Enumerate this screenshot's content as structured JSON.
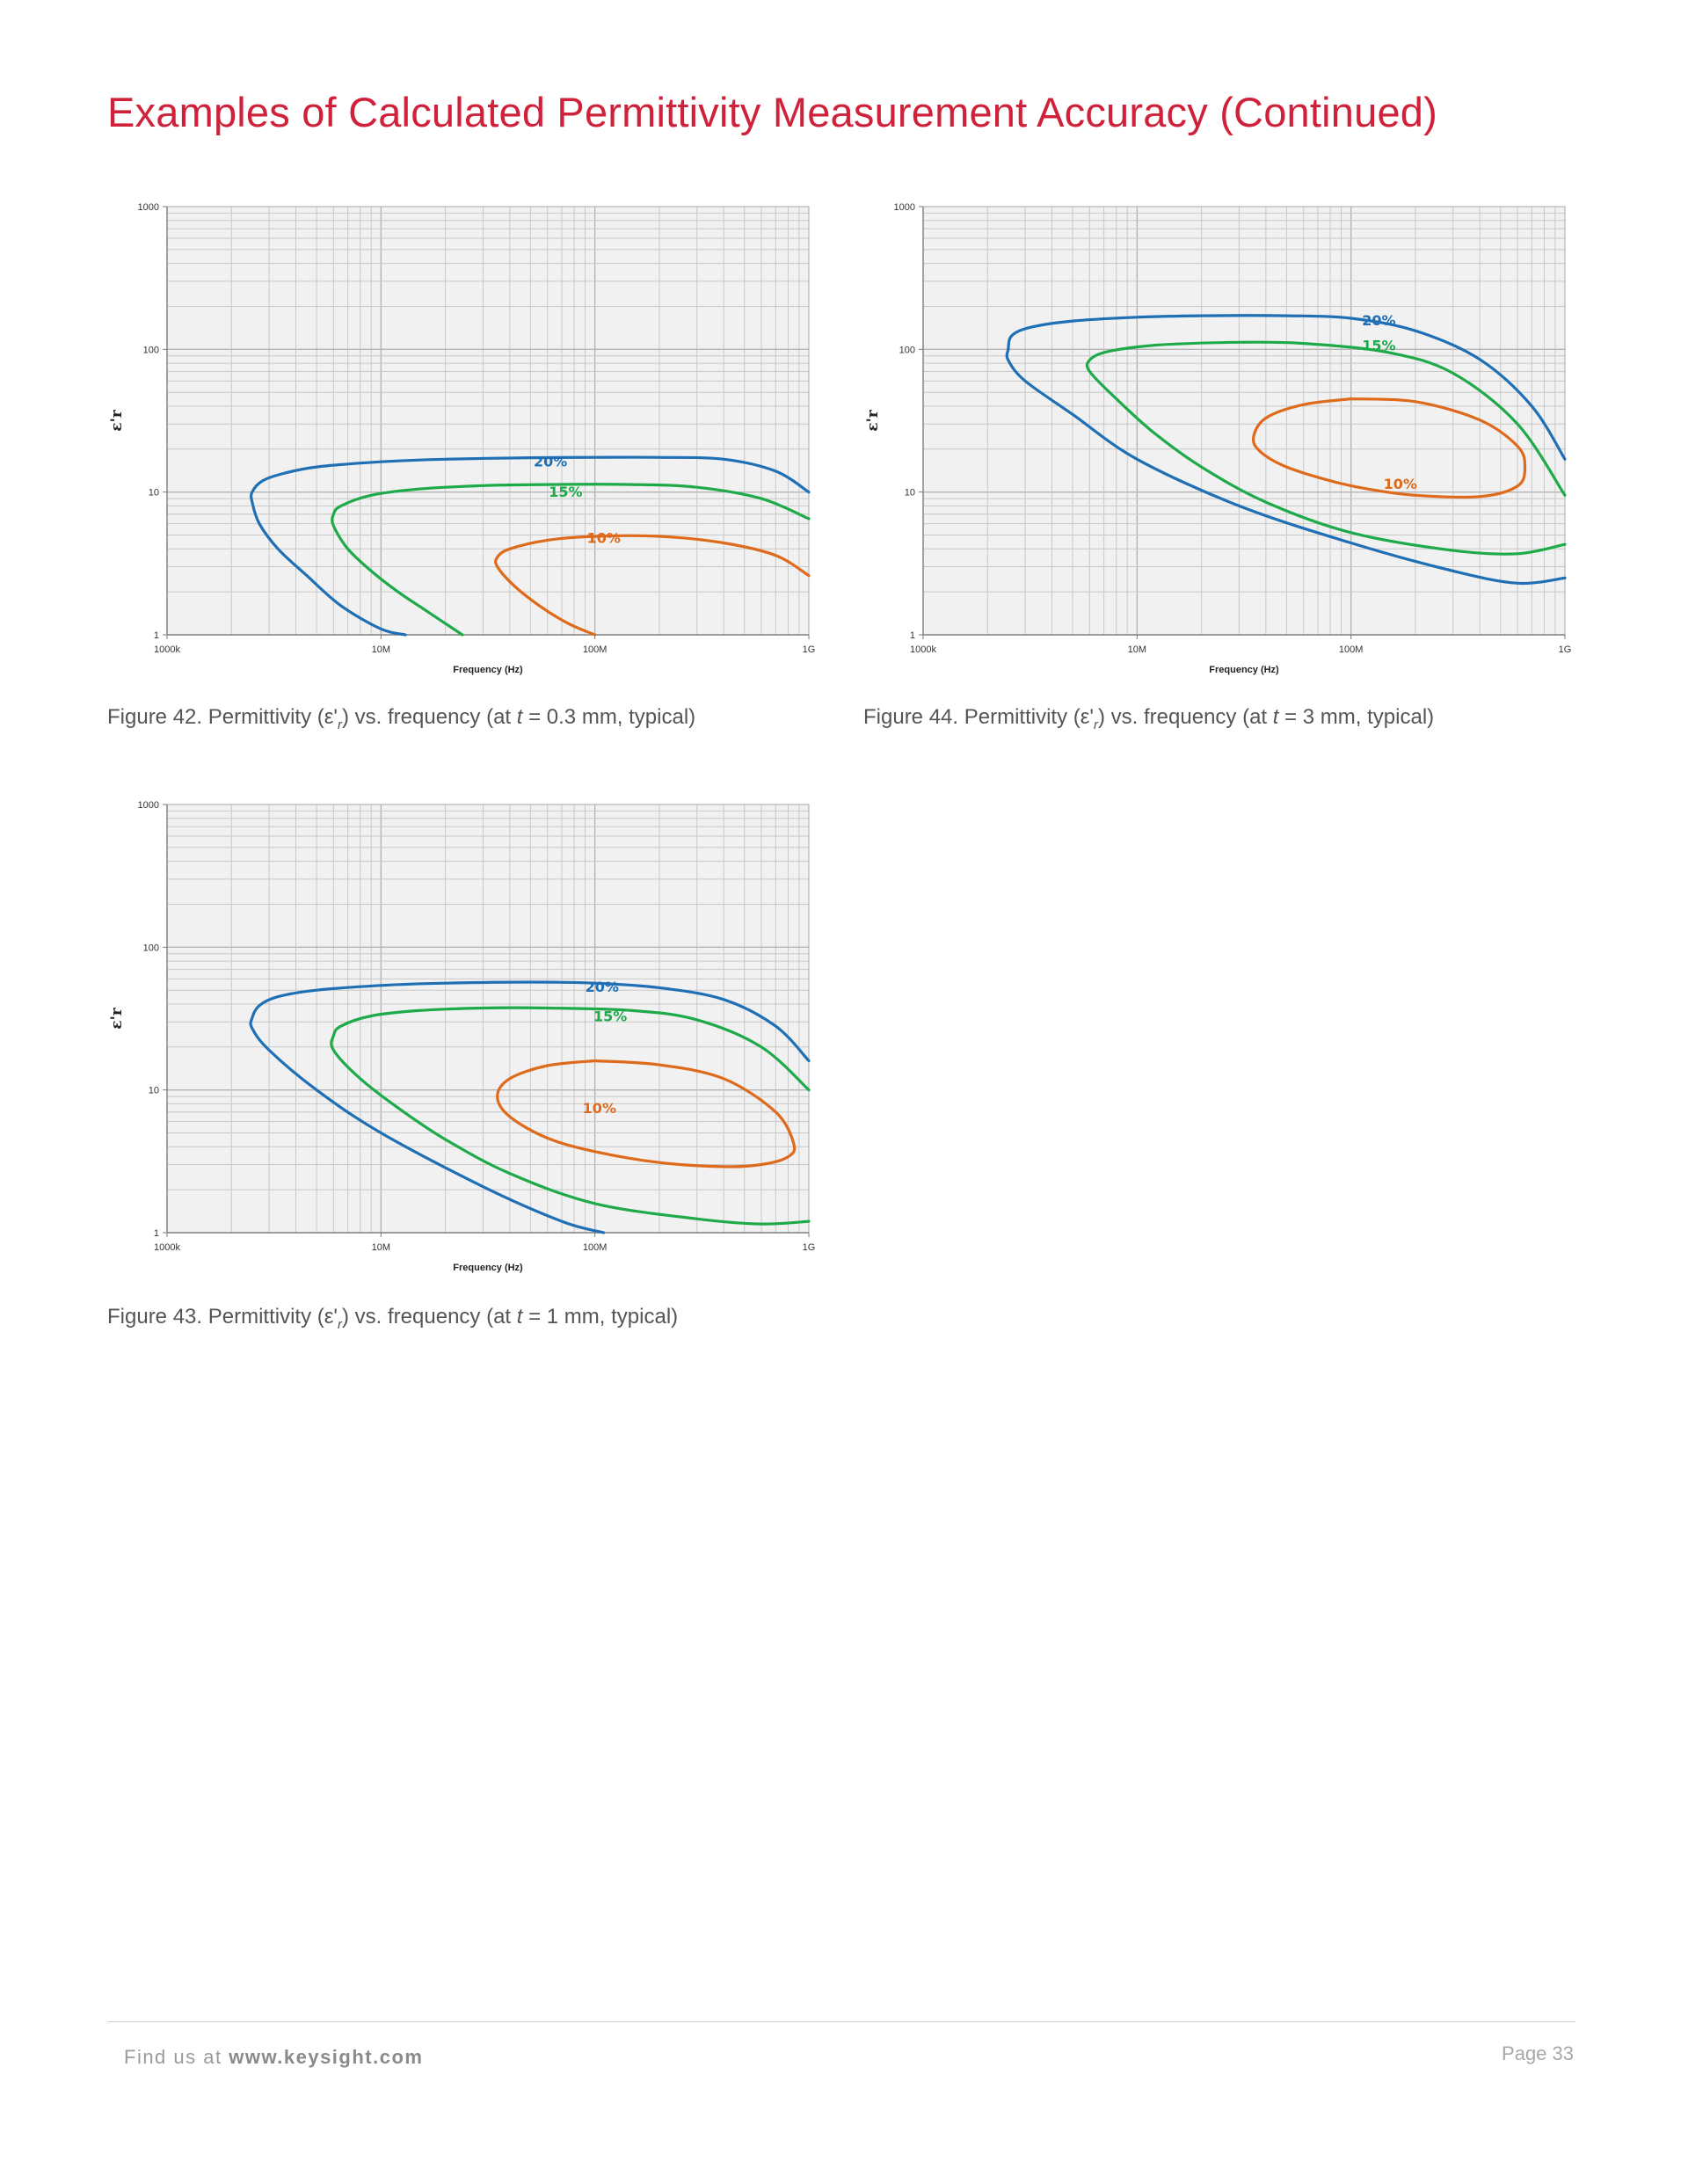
{
  "page": {
    "title": "Examples of Calculated Permittivity Measurement Accuracy (Continued)",
    "footer": {
      "find_prefix": "Find us at",
      "website": "www.keysight.com",
      "page_label": "Page 33"
    }
  },
  "captions": {
    "fig42": {
      "pre": "Figure 42. Permittivity (ε'",
      "sub": "r",
      "mid": ") vs. frequency (at ",
      "var": "t",
      "post": " = 0.3 mm, typical)"
    },
    "fig44": {
      "pre": "Figure 44. Permittivity (ε'",
      "sub": "r",
      "mid": ") vs. frequency (at ",
      "var": "t",
      "post": " = 3 mm, typical)"
    },
    "fig43": {
      "pre": "Figure 43. Permittivity (ε'",
      "sub": "r",
      "mid": ") vs. frequency (at ",
      "var": "t",
      "post": " = 1 mm, typical)"
    }
  },
  "colors": {
    "s20": "#1f6fb5",
    "s15": "#1faa4a",
    "s10": "#de6a1c",
    "grid": "#c8c8c8",
    "plot_bg": "#f1f1f1"
  },
  "chart_data": [
    {
      "id": "fig42",
      "type": "line",
      "xlabel": "Frequency (Hz)",
      "ylabel": "ε'r",
      "xscale": "log",
      "yscale": "log",
      "xlim": [
        1000000,
        1000000000
      ],
      "ylim": [
        1,
        1000
      ],
      "xticks": [
        {
          "v": 1000000,
          "label": "1000k"
        },
        {
          "v": 10000000,
          "label": "10M"
        },
        {
          "v": 100000000,
          "label": "100M"
        },
        {
          "v": 1000000000,
          "label": "1G"
        }
      ],
      "yticks": [
        {
          "v": 1,
          "label": "1"
        },
        {
          "v": 10,
          "label": "10"
        },
        {
          "v": 100,
          "label": "100"
        },
        {
          "v": 1000,
          "label": "1000"
        }
      ],
      "grid": true,
      "series": [
        {
          "name": "20%",
          "color_key": "s20",
          "label_at": [
            62000000,
            16.5
          ],
          "x": [
            1000000000,
            700000000,
            400000000,
            200000000,
            100000000,
            50000000,
            20000000,
            10000000,
            5000000,
            3500000,
            2800000,
            2500000,
            2500000,
            2700000,
            3300000,
            4500000,
            6500000,
            10000000,
            13000000
          ],
          "y": [
            10,
            14,
            17,
            17.5,
            17.5,
            17.4,
            17,
            16.3,
            15,
            13.5,
            12,
            10,
            8.5,
            6,
            4,
            2.6,
            1.6,
            1.1,
            1
          ]
        },
        {
          "name": "15%",
          "color_key": "s15",
          "label_at": [
            73000000,
            10.1
          ],
          "x": [
            1000000000,
            600000000,
            300000000,
            150000000,
            60000000,
            30000000,
            15000000,
            9000000,
            6500000,
            6000000,
            6000000,
            7000000,
            9000000,
            12000000,
            16000000,
            24000000
          ],
          "y": [
            6.5,
            9,
            10.8,
            11.3,
            11.3,
            11.1,
            10.5,
            9.5,
            8,
            7,
            5.8,
            4,
            2.8,
            2,
            1.5,
            1
          ]
        },
        {
          "name": "10%",
          "color_key": "s10",
          "label_at": [
            110000000,
            4.8
          ],
          "x": [
            1000000000,
            700000000,
            400000000,
            200000000,
            100000000,
            60000000,
            40000000,
            35000000,
            35000000,
            42000000,
            55000000,
            75000000,
            100000000
          ],
          "y": [
            2.6,
            3.6,
            4.4,
            4.9,
            4.9,
            4.6,
            4,
            3.5,
            3,
            2.2,
            1.6,
            1.2,
            1
          ]
        }
      ]
    },
    {
      "id": "fig44",
      "type": "line",
      "xlabel": "Frequency (Hz)",
      "ylabel": "ε'r",
      "xscale": "log",
      "yscale": "log",
      "xlim": [
        1000000,
        1000000000
      ],
      "ylim": [
        1,
        1000
      ],
      "xticks": [
        {
          "v": 1000000,
          "label": "1000k"
        },
        {
          "v": 10000000,
          "label": "10M"
        },
        {
          "v": 100000000,
          "label": "100M"
        },
        {
          "v": 1000000000,
          "label": "1G"
        }
      ],
      "yticks": [
        {
          "v": 1,
          "label": "1"
        },
        {
          "v": 10,
          "label": "10"
        },
        {
          "v": 100,
          "label": "100"
        },
        {
          "v": 1000,
          "label": "1000"
        }
      ],
      "grid": true,
      "series": [
        {
          "name": "20%",
          "color_key": "s20",
          "label_at": [
            135000000,
            160
          ],
          "x": [
            1000000000,
            700000000,
            400000000,
            200000000,
            100000000,
            50000000,
            20000000,
            10000000,
            5000000,
            3200000,
            2600000,
            2500000,
            2500000,
            3000000,
            5000000,
            10000000,
            30000000,
            100000000,
            300000000,
            600000000,
            1000000000
          ],
          "y": [
            17,
            40,
            85,
            135,
            165,
            172,
            172,
            168,
            158,
            143,
            125,
            100,
            84,
            60,
            35,
            17,
            8,
            4.4,
            2.8,
            2.3,
            2.5
          ]
        },
        {
          "name": "15%",
          "color_key": "s15",
          "label_at": [
            135000000,
            107
          ],
          "x": [
            1000000000,
            600000000,
            300000000,
            150000000,
            60000000,
            30000000,
            15000000,
            10000000,
            7000000,
            6000000,
            6000000,
            8000000,
            12000000,
            20000000,
            40000000,
            100000000,
            300000000,
            600000000,
            1000000000
          ],
          "y": [
            9.5,
            30,
            68,
            95,
            110,
            112,
            109,
            104,
            95,
            84,
            70,
            45,
            26,
            15,
            8.5,
            5.2,
            3.9,
            3.7,
            4.3
          ]
        },
        {
          "name": "10%",
          "color_key": "s10",
          "label_at": [
            170000000,
            11.5
          ],
          "x": [
            100000000,
            200000000,
            400000000,
            600000000,
            650000000,
            600000000,
            400000000,
            200000000,
            120000000,
            80000000,
            50000000,
            38000000,
            35000000,
            40000000,
            60000000,
            100000000
          ],
          "y": [
            45,
            43,
            32,
            21,
            15,
            11,
            9.3,
            9.5,
            10.5,
            12,
            15,
            19,
            24,
            33,
            41,
            45
          ]
        }
      ]
    },
    {
      "id": "fig43",
      "type": "line",
      "xlabel": "Frequency (Hz)",
      "ylabel": "ε'r",
      "xscale": "log",
      "yscale": "log",
      "xlim": [
        1000000,
        1000000000
      ],
      "ylim": [
        1,
        1000
      ],
      "xticks": [
        {
          "v": 1000000,
          "label": "1000k"
        },
        {
          "v": 10000000,
          "label": "10M"
        },
        {
          "v": 100000000,
          "label": "100M"
        },
        {
          "v": 1000000000,
          "label": "1G"
        }
      ],
      "yticks": [
        {
          "v": 1,
          "label": "1"
        },
        {
          "v": 10,
          "label": "10"
        },
        {
          "v": 100,
          "label": "100"
        },
        {
          "v": 1000,
          "label": "1000"
        }
      ],
      "grid": true,
      "series": [
        {
          "name": "20%",
          "color_key": "s20",
          "label_at": [
            108000000,
            53
          ],
          "x": [
            1000000000,
            700000000,
            400000000,
            200000000,
            100000000,
            50000000,
            20000000,
            10000000,
            5000000,
            3300000,
            2700000,
            2500000,
            2500000,
            3000000,
            5000000,
            10000000,
            30000000,
            70000000,
            110000000
          ],
          "y": [
            16,
            28,
            43,
            52,
            56,
            57,
            56,
            54,
            50,
            45,
            39,
            32,
            27,
            19,
            10,
            5,
            2.1,
            1.2,
            1
          ]
        },
        {
          "name": "15%",
          "color_key": "s15",
          "label_at": [
            118000000,
            33
          ],
          "x": [
            1000000000,
            600000000,
            300000000,
            150000000,
            60000000,
            30000000,
            15000000,
            9000000,
            6500000,
            6000000,
            6000000,
            8000000,
            12000000,
            20000000,
            40000000,
            100000000,
            300000000,
            600000000,
            1000000000
          ],
          "y": [
            10,
            20,
            31,
            36,
            37.5,
            37.5,
            36,
            33,
            28,
            24,
            19,
            12,
            7.5,
            4.5,
            2.6,
            1.6,
            1.25,
            1.15,
            1.2
          ]
        },
        {
          "name": "10%",
          "color_key": "s10",
          "label_at": [
            105000000,
            7.5
          ],
          "x": [
            100000000,
            200000000,
            400000000,
            700000000,
            850000000,
            800000000,
            600000000,
            400000000,
            200000000,
            100000000,
            60000000,
            40000000,
            35000000,
            40000000,
            60000000,
            100000000
          ],
          "y": [
            16,
            15,
            12,
            7,
            4.2,
            3.4,
            3,
            2.9,
            3.1,
            3.7,
            4.6,
            6.5,
            9,
            12,
            14.8,
            16
          ]
        }
      ]
    }
  ]
}
